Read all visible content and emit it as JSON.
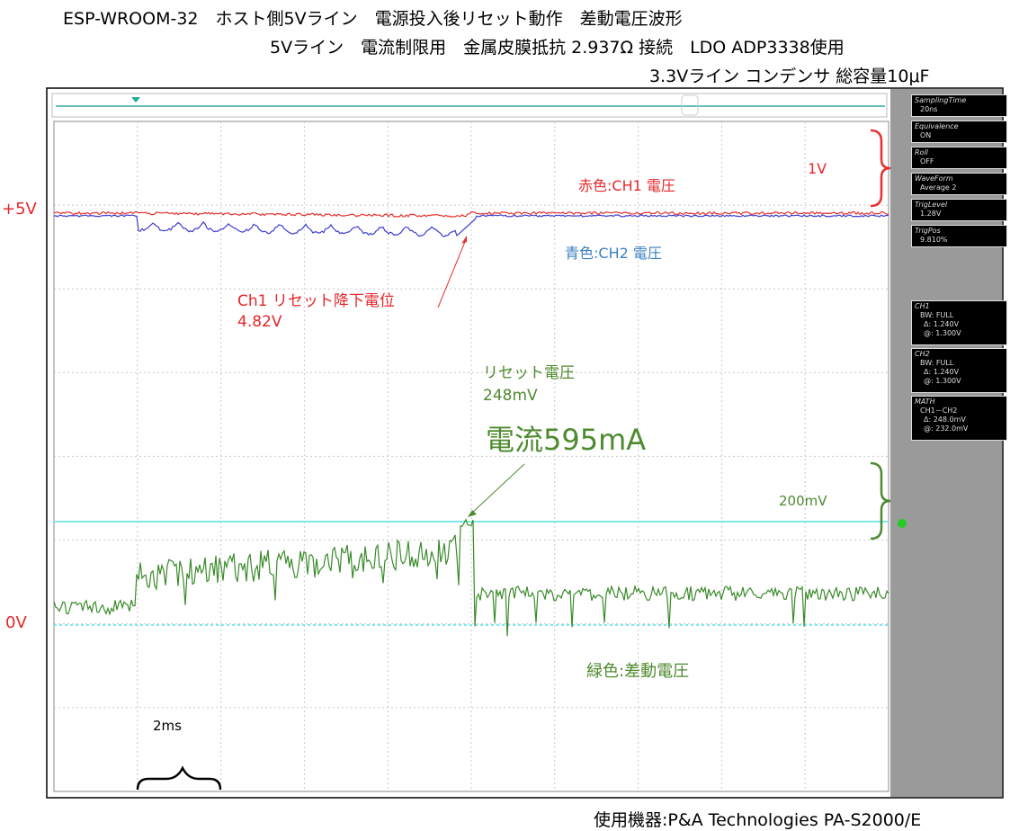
{
  "header": {
    "lines": [
      "ESP-WROOM-32　ホスト側5Vライン　電源投入後リセット動作　差動電圧波形",
      "5Vライン　電流制限用　金属皮膜抵抗 2.937Ω 接続　LDO ADP3338使用",
      "3.3Vライン コンデンサ 総容量10μF"
    ]
  },
  "levels": {
    "top": "+5V",
    "bottom": "0V"
  },
  "annotations": {
    "ch1_legend": "赤色:CH1 電圧",
    "ch2_legend": "青色:CH2 電圧",
    "scale_1v": "1V",
    "ch1_drop_title": "Ch1 リセット降下電位",
    "ch1_drop_value": "4.82V",
    "reset_title": "リセット電圧",
    "reset_value": "248mV",
    "current": "電流595mA",
    "scale_200mv": "200mV",
    "math_legend": "緑色:差動電圧",
    "time_div": "2ms"
  },
  "panel": {
    "settings": [
      {
        "label": "SamplingTime",
        "value": "20ns"
      },
      {
        "label": "Equivalence",
        "value": "ON"
      },
      {
        "label": "Roll",
        "value": "OFF"
      },
      {
        "label": "WaveForm",
        "value": "Average 2"
      },
      {
        "label": "TrigLevel",
        "value": "1.28V"
      },
      {
        "label": "TrigPos",
        "value": "9.810%"
      }
    ],
    "channels": [
      {
        "name": "CH1",
        "lines": [
          "BW: FULL",
          "Δ: 1.240V",
          "@: 1.300V"
        ]
      },
      {
        "name": "CH2",
        "lines": [
          "BW: FULL",
          "Δ: 1.240V",
          "@: 1.300V"
        ]
      },
      {
        "name": "MATH",
        "lines": [
          "CH1－CH2",
          "Δ: 248.0mV",
          "@: 232.0mV"
        ]
      }
    ]
  },
  "footer": {
    "text": "使用機器:P&A Technologies PA-S2000/E"
  }
}
